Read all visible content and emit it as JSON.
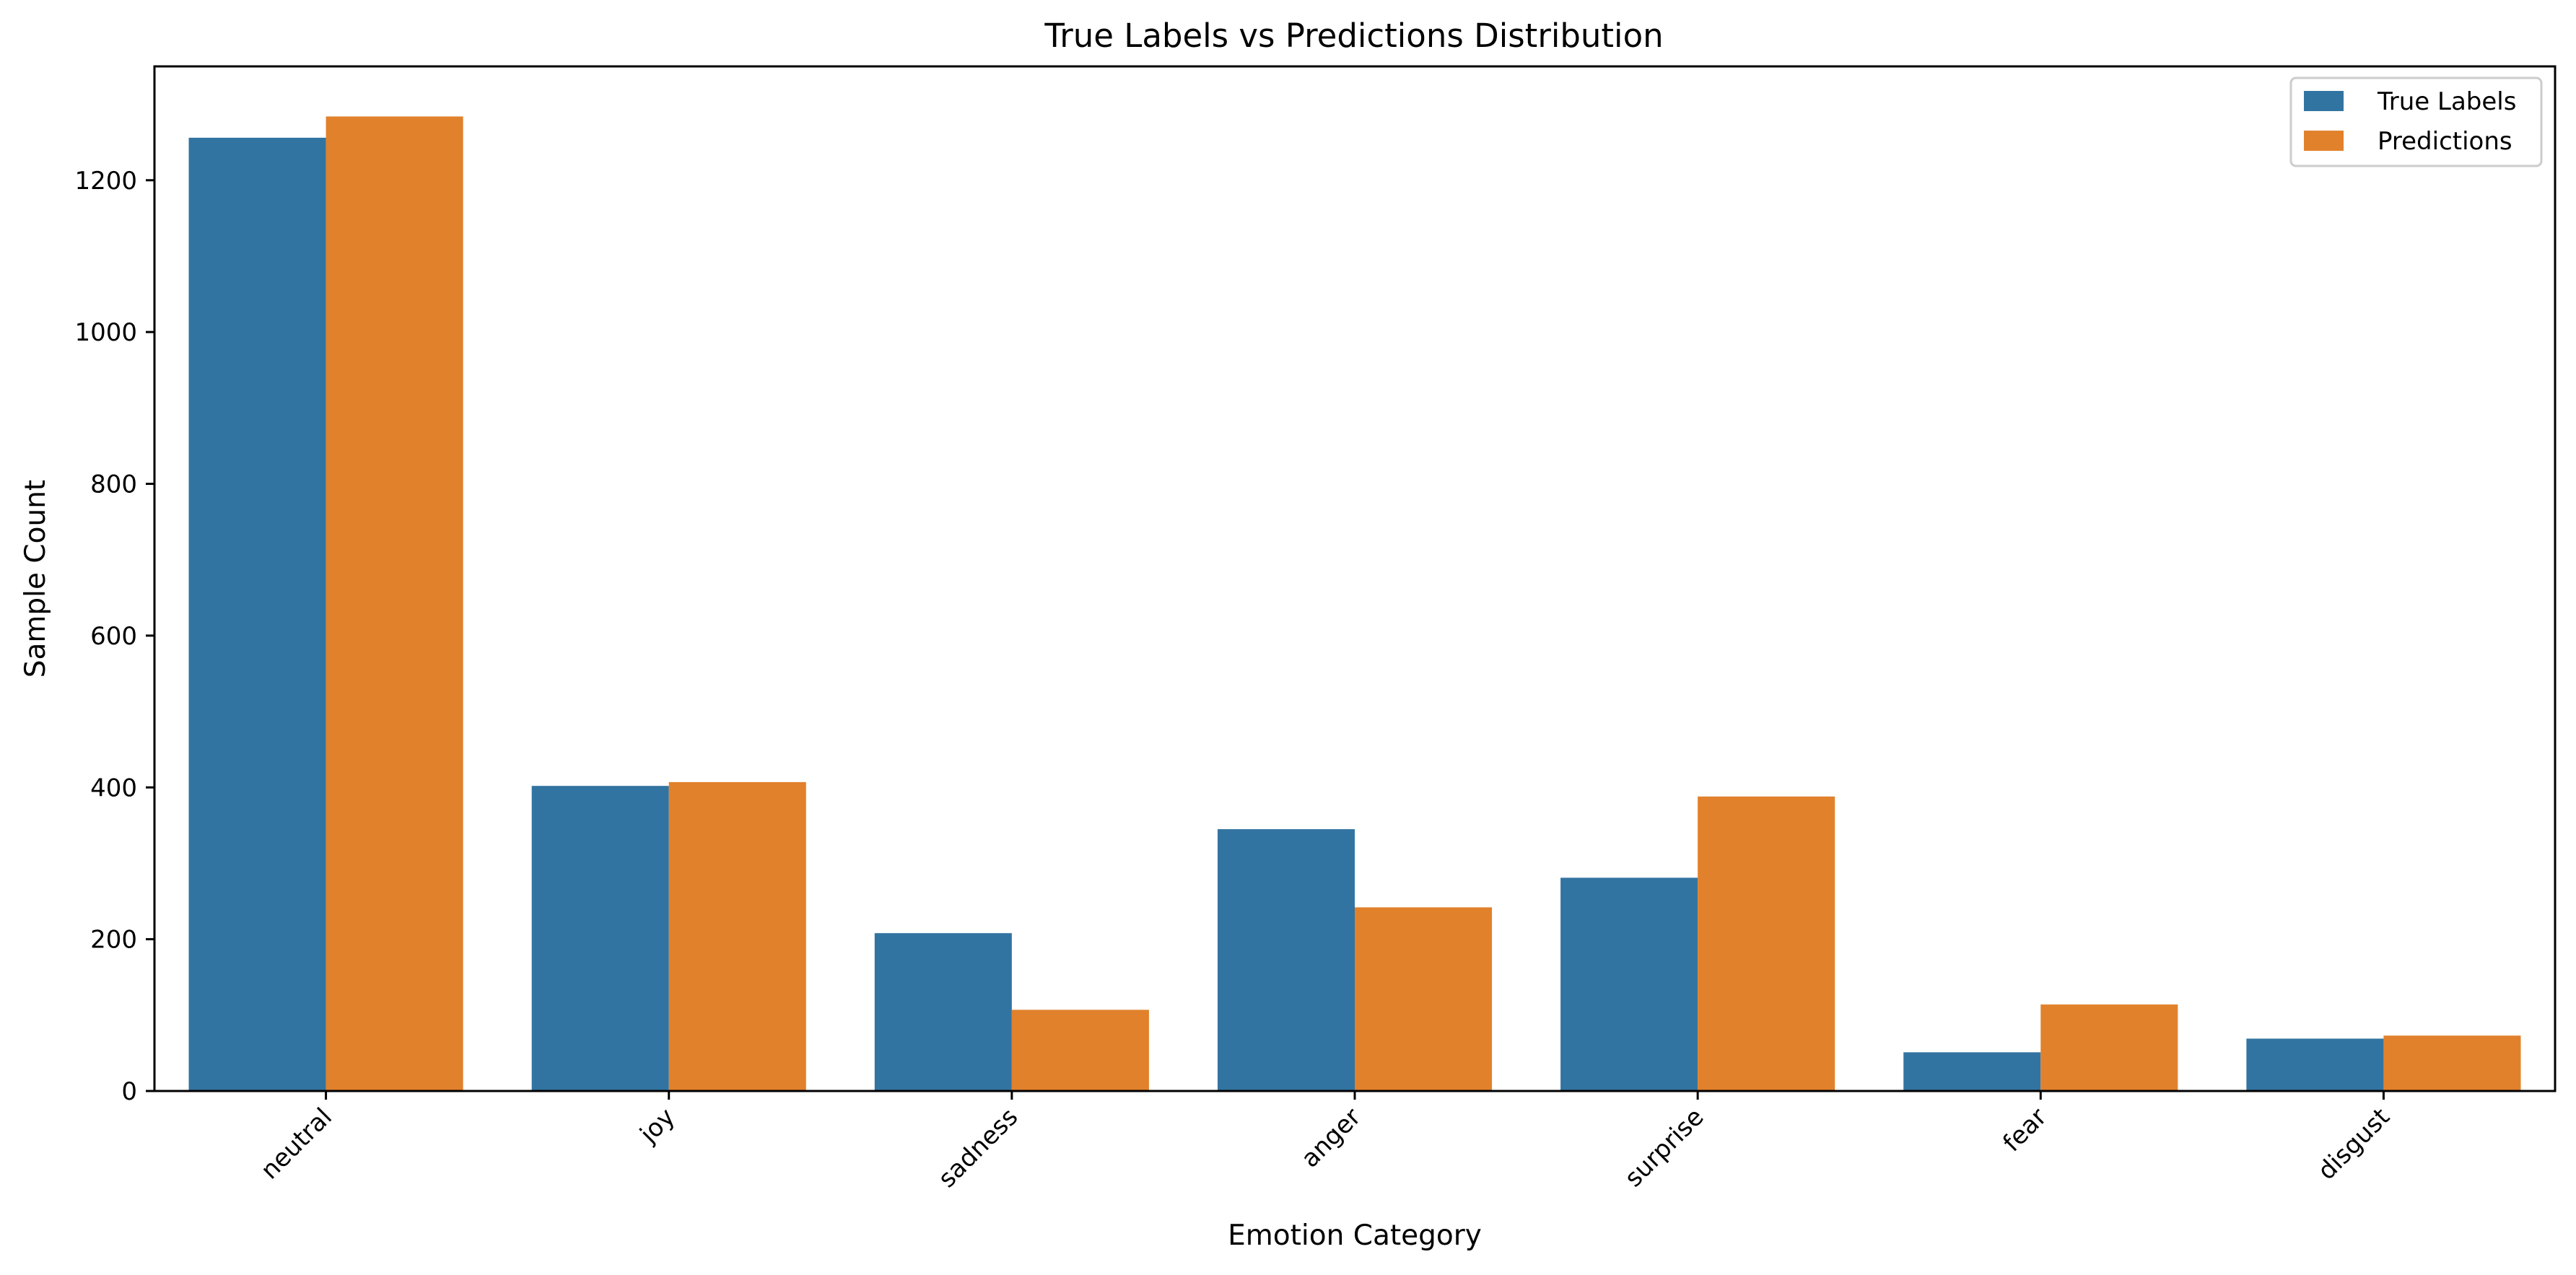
{
  "chart_data": {
    "type": "bar",
    "title": "True Labels vs Predictions Distribution",
    "xlabel": "Emotion Category",
    "ylabel": "Sample Count",
    "categories": [
      "neutral",
      "joy",
      "sadness",
      "anger",
      "surprise",
      "fear",
      "disgust"
    ],
    "series": [
      {
        "name": "True Labels",
        "color": "#3274a1",
        "values": [
          1256,
          402,
          208,
          345,
          281,
          51,
          69
        ]
      },
      {
        "name": "Predictions",
        "color": "#e1812c",
        "values": [
          1284,
          407,
          107,
          242,
          388,
          114,
          73
        ]
      }
    ],
    "yticks": [
      0,
      200,
      400,
      600,
      800,
      1000,
      1200
    ],
    "ylim": [
      0,
      1350
    ],
    "xtick_rotation_deg": 45,
    "grid": false,
    "legend_position": "upper right"
  }
}
